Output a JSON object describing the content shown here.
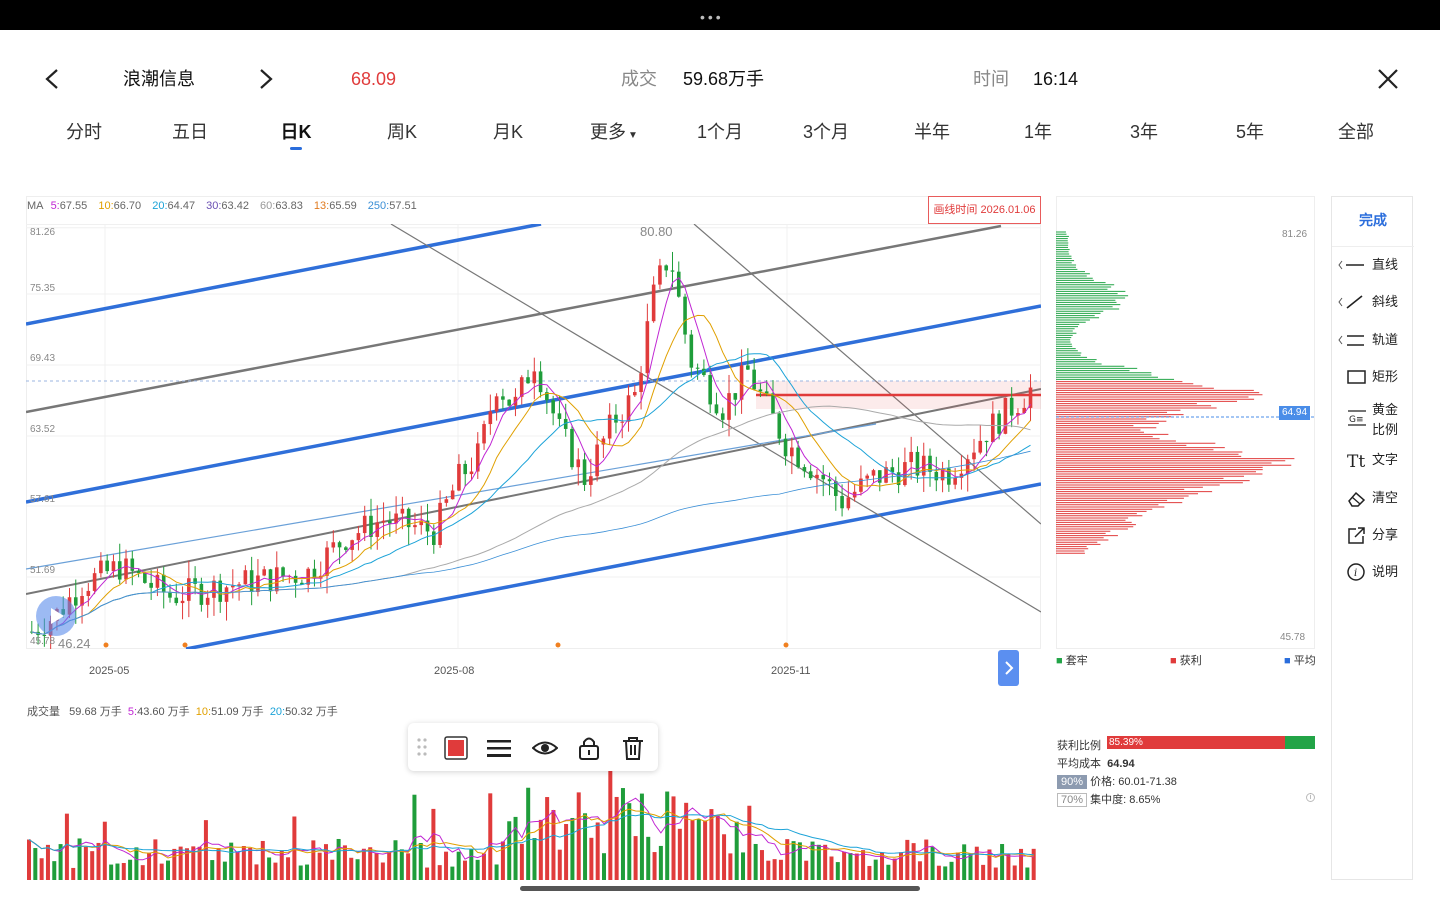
{
  "header": {
    "stock_name": "浪潮信息",
    "price": "68.09",
    "volume_label": "成交",
    "volume_value": "59.68万手",
    "time_label": "时间",
    "time_value": "16:14"
  },
  "tabs": [
    "分时",
    "五日",
    "日K",
    "周K",
    "月K",
    "更多",
    "1个月",
    "3个月",
    "半年",
    "1年",
    "3年",
    "5年",
    "全部"
  ],
  "active_tab": "日K",
  "ma_legend": {
    "ma_label": "MA",
    "items": [
      {
        "label": "5:",
        "value": "67.55",
        "color": "#c026d3"
      },
      {
        "label": "10:",
        "value": "66.70",
        "color": "#e0a000"
      },
      {
        "label": "20:",
        "value": "64.47",
        "color": "#1ca3d8"
      },
      {
        "label": "30:",
        "value": "63.42",
        "color": "#6a4fb3"
      },
      {
        "label": "60:",
        "value": "63.83",
        "color": "#999999"
      },
      {
        "label": "13:",
        "value": "65.59",
        "color": "#e07a1f"
      },
      {
        "label": "250:",
        "value": "57.51",
        "color": "#3b8fd6"
      }
    ]
  },
  "draw_time_badge": "画线时间 2026.01.06",
  "price_axis": [
    "81.26",
    "75.35",
    "69.43",
    "63.52",
    "57.61",
    "51.69",
    "45.78"
  ],
  "high_annotation": "80.80",
  "low_annotation": "46.24",
  "x_axis": [
    "2025-05",
    "2025-08",
    "2025-11"
  ],
  "volume_legend": {
    "label": "成交量",
    "total": "59.68 万手",
    "items": [
      {
        "label": "5:",
        "value": "43.60 万手",
        "color": "#c026d3"
      },
      {
        "label": "10:",
        "value": "51.09 万手",
        "color": "#e0a000"
      },
      {
        "label": "20:",
        "value": "50.32 万手",
        "color": "#1ca3d8"
      }
    ]
  },
  "distribution": {
    "top_price": "81.26",
    "bottom_price": "45.78",
    "avg_marker": "64.94",
    "legend": [
      {
        "label": "套牢",
        "color": "#22a447"
      },
      {
        "label": "获利",
        "color": "#e03b3b"
      },
      {
        "label": "平均",
        "color": "#2a6ddc"
      }
    ],
    "profit_ratio_label": "获利比例",
    "profit_ratio_value": "85.39%",
    "profit_ratio": 0.8539,
    "avg_cost_label": "平均成本",
    "avg_cost_value": "64.94",
    "band90_tag": "90%",
    "band90_text": "价格: 60.01-71.38",
    "band70_tag": "70%",
    "band70_text": "集中度: 8.65%"
  },
  "side_tools": {
    "done": "完成",
    "items": [
      {
        "label": "直线",
        "icon": "hline-icon"
      },
      {
        "label": "斜线",
        "icon": "diagonal-line-icon"
      },
      {
        "label": "轨道",
        "icon": "channel-icon"
      },
      {
        "label": "矩形",
        "icon": "rectangle-icon"
      },
      {
        "label": "黄金\n比例",
        "icon": "golden-ratio-icon"
      },
      {
        "label": "文字",
        "icon": "text-icon"
      },
      {
        "label": "清空",
        "icon": "eraser-icon"
      },
      {
        "label": "分享",
        "icon": "share-icon"
      },
      {
        "label": "说明",
        "icon": "info-icon"
      }
    ]
  },
  "colors": {
    "up": "#e03b3b",
    "down": "#1f9d3a",
    "accent": "#2a6ddc"
  }
}
